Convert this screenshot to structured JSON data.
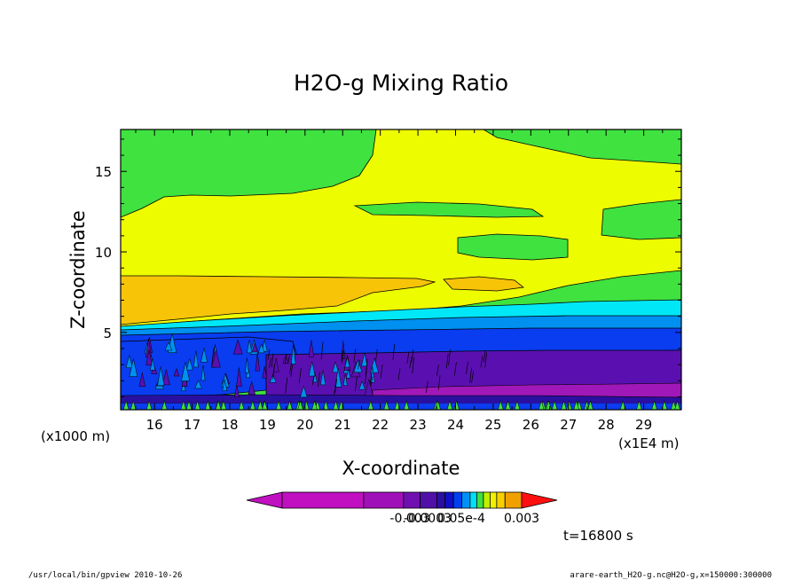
{
  "chart_data": {
    "type": "heatmap",
    "title": "H2O-g Mixing Ratio",
    "xlabel": "X-coordinate",
    "ylabel": "Z-coordinate",
    "x_unit_left": "(x1000 m)",
    "x_unit_right": "(x1E4 m)",
    "xlim": [
      15.1,
      30.0
    ],
    "ylim": [
      0.2,
      17.6
    ],
    "x_ticks": [
      "16",
      "17",
      "18",
      "19",
      "20",
      "21",
      "22",
      "23",
      "24",
      "25",
      "26",
      "27",
      "28",
      "29"
    ],
    "x_tick_values": [
      16,
      17,
      18,
      19,
      20,
      21,
      22,
      23,
      24,
      25,
      26,
      27,
      28,
      29
    ],
    "y_ticks": [
      "5",
      "10",
      "15"
    ],
    "y_tick_values": [
      5,
      10,
      15
    ],
    "time_label": "t=16800 s",
    "colorbar": {
      "colors": [
        "#c010c0",
        "#a010b8",
        "#7010b0",
        "#5010a8",
        "#2a10a0",
        "#1010c8",
        "#0040f0",
        "#0090f8",
        "#00e0f8",
        "#40e040",
        "#c0f000",
        "#f0f000",
        "#f8d000",
        "#f0a000",
        "#f86000",
        "#ff1010"
      ],
      "labels": [
        "-0.003",
        "-0.0003",
        "0.05e-4",
        "0.003"
      ]
    },
    "bands": [
      {
        "name": "green_top",
        "color": "#3fe23f",
        "z": [
          17.6,
          17.6
        ]
      },
      {
        "name": "yellow_upper",
        "color": "#eefc00",
        "z": [
          13.0,
          8.5
        ]
      },
      {
        "name": "orange",
        "color": "#f8c408",
        "z": [
          8.6,
          5.5
        ]
      },
      {
        "name": "cyan",
        "color": "#00e8f8",
        "z": [
          5.6,
          5.2
        ]
      },
      {
        "name": "light_blue",
        "color": "#0090f0",
        "z": [
          5.0,
          4.0
        ]
      },
      {
        "name": "blue",
        "color": "#0a3cf0",
        "z": [
          4.5,
          2.8
        ]
      },
      {
        "name": "violet",
        "color": "#5a10b0",
        "z": [
          2.5,
          1.0
        ]
      },
      {
        "name": "magenta",
        "color": "#a018b8",
        "z": [
          1.5,
          0.9
        ]
      }
    ]
  },
  "footer": {
    "left": "/usr/local/bin/gpview  2010-10-26",
    "right": "arare-earth_H2O-g.nc@H2O-g,x=150000:300000"
  }
}
